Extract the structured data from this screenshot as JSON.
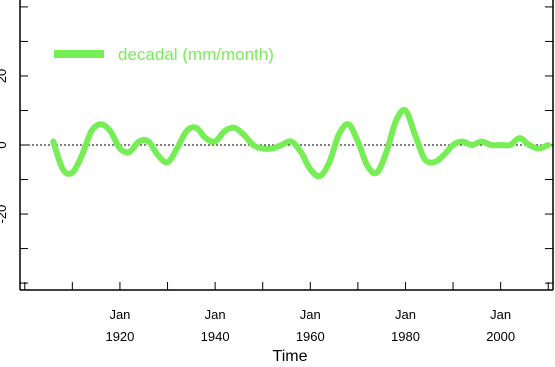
{
  "chart_data": {
    "type": "line",
    "title": "",
    "xlabel": "Time",
    "ylabel": "",
    "xlim": [
      1899,
      2011
    ],
    "ylim": [
      -42,
      42
    ],
    "grid": false,
    "legend": {
      "position": "top-left"
    },
    "x_ticks": [
      {
        "value": 1920,
        "label_top": "Jan",
        "label_bottom": "1920"
      },
      {
        "value": 1940,
        "label_top": "Jan",
        "label_bottom": "1940"
      },
      {
        "value": 1960,
        "label_top": "Jan",
        "label_bottom": "1960"
      },
      {
        "value": 1980,
        "label_top": "Jan",
        "label_bottom": "1980"
      },
      {
        "value": 2000,
        "label_top": "Jan",
        "label_bottom": "2000"
      }
    ],
    "y_ticks": [
      {
        "value": 20,
        "label": "20"
      },
      {
        "value": 0,
        "label": "0"
      },
      {
        "value": -20,
        "label": "-20"
      }
    ],
    "reference_line": {
      "y": 0,
      "style": "dotted"
    },
    "series": [
      {
        "name": "decadal (mm/month)",
        "color": "#77ee55",
        "x": [
          1906,
          1908,
          1910,
          1912,
          1914,
          1916,
          1918,
          1920,
          1922,
          1924,
          1926,
          1928,
          1930,
          1932,
          1934,
          1936,
          1938,
          1940,
          1942,
          1944,
          1946,
          1948,
          1950,
          1952,
          1954,
          1956,
          1958,
          1960,
          1962,
          1964,
          1966,
          1968,
          1970,
          1972,
          1974,
          1976,
          1978,
          1980,
          1982,
          1984,
          1986,
          1988,
          1990,
          1992,
          1994,
          1996,
          1998,
          2000,
          2002,
          2004,
          2006,
          2008,
          2010
        ],
        "y": [
          1,
          -7,
          -8,
          -3,
          4,
          6,
          4,
          -1,
          -2,
          1,
          1,
          -3,
          -5,
          -1,
          4,
          5,
          2,
          1,
          4,
          5,
          3,
          0,
          -1,
          -1,
          0,
          1,
          -2,
          -7,
          -9,
          -5,
          3,
          6,
          1,
          -6,
          -8,
          -2,
          7,
          10,
          3,
          -4,
          -5,
          -3,
          0,
          1,
          0,
          1,
          0,
          0,
          0,
          2,
          0,
          -1,
          0
        ]
      }
    ]
  }
}
